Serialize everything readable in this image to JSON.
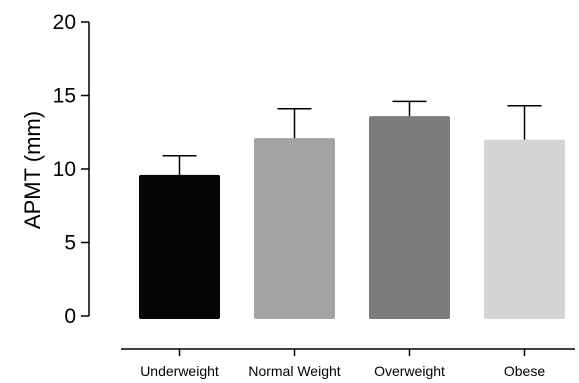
{
  "chart_data": {
    "type": "bar",
    "title": "",
    "xlabel": "",
    "ylabel": "APMT (mm)",
    "ylim": [
      0,
      20
    ],
    "yticks": [
      0,
      5,
      10,
      15,
      20
    ],
    "categories": [
      "Underweight",
      "Normal Weight",
      "Overweight",
      "Obese"
    ],
    "values": [
      9.6,
      12.1,
      13.6,
      12.0
    ],
    "errors": [
      1.3,
      2.0,
      1.0,
      2.3
    ],
    "bar_colors": [
      "#050505",
      "#a3a3a6",
      "#7c7c7c",
      "#d4d4d4"
    ],
    "grid": false,
    "legend": "none"
  }
}
